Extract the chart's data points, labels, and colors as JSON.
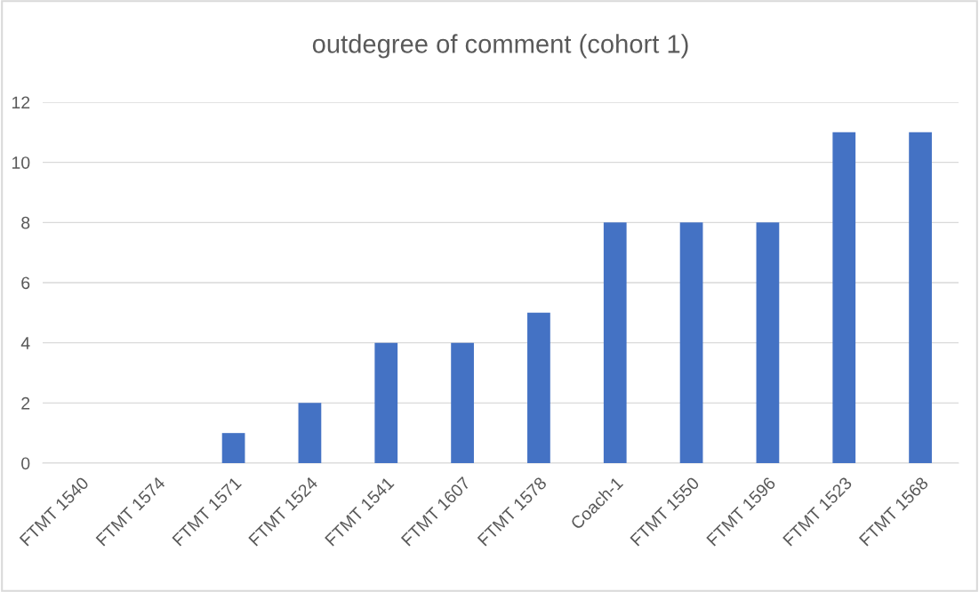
{
  "chart_data": {
    "type": "bar",
    "title": "outdegree of comment (cohort 1)",
    "categories": [
      "FTMT 1540",
      "FTMT 1574",
      "FTMT 1571",
      "FTMT 1524",
      "FTMT 1541",
      "FTMT 1607",
      "FTMT 1578",
      "Coach-1",
      "FTMT 1550",
      "FTMT 1596",
      "FTMT 1523",
      "FTMT 1568"
    ],
    "values": [
      0,
      0,
      1,
      2,
      4,
      4,
      5,
      8,
      8,
      8,
      11,
      11
    ],
    "color": "#4472c4",
    "ylim": [
      0,
      12
    ],
    "yticks": [
      0,
      2,
      4,
      6,
      8,
      10,
      12
    ],
    "grid": "y",
    "legend": false
  }
}
